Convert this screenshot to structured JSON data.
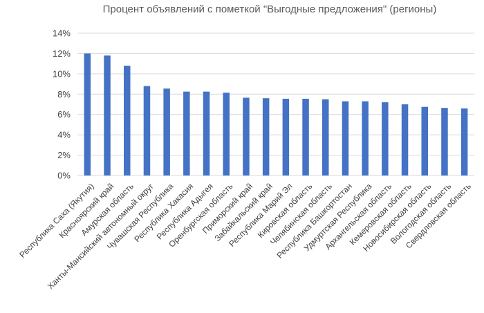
{
  "chart_data": {
    "type": "bar",
    "title": "Процент объявлений с пометкой \"Выгодные предложения\" (регионы)",
    "xlabel": "",
    "ylabel": "",
    "ylim": [
      0,
      14
    ],
    "y_ticks": [
      "0%",
      "2%",
      "4%",
      "6%",
      "8%",
      "10%",
      "12%",
      "14%"
    ],
    "grid": true,
    "bar_color": "#4472C4",
    "categories": [
      "Республика Саха (Якутия)",
      "Красноярский край",
      "Амурская область",
      "Ханты-Мансийский автономный округ",
      "Чувашская Республика",
      "Республика Хакасия",
      "Республика Адыгея",
      "Оренбургская область",
      "Приморский край",
      "Забайкальский край",
      "Республика Марий Эл",
      "Кировская область",
      "Челябинская область",
      "Республика Башкортостан",
      "Удмуртская Республика",
      "Архангельская область",
      "Кемеровская область",
      "Новосибирская область",
      "Вологодская область",
      "Свердловская область"
    ],
    "values": [
      12.0,
      11.8,
      10.8,
      8.8,
      8.55,
      8.25,
      8.25,
      8.15,
      7.65,
      7.6,
      7.55,
      7.55,
      7.5,
      7.3,
      7.3,
      7.2,
      7.0,
      6.75,
      6.65,
      6.6
    ]
  }
}
